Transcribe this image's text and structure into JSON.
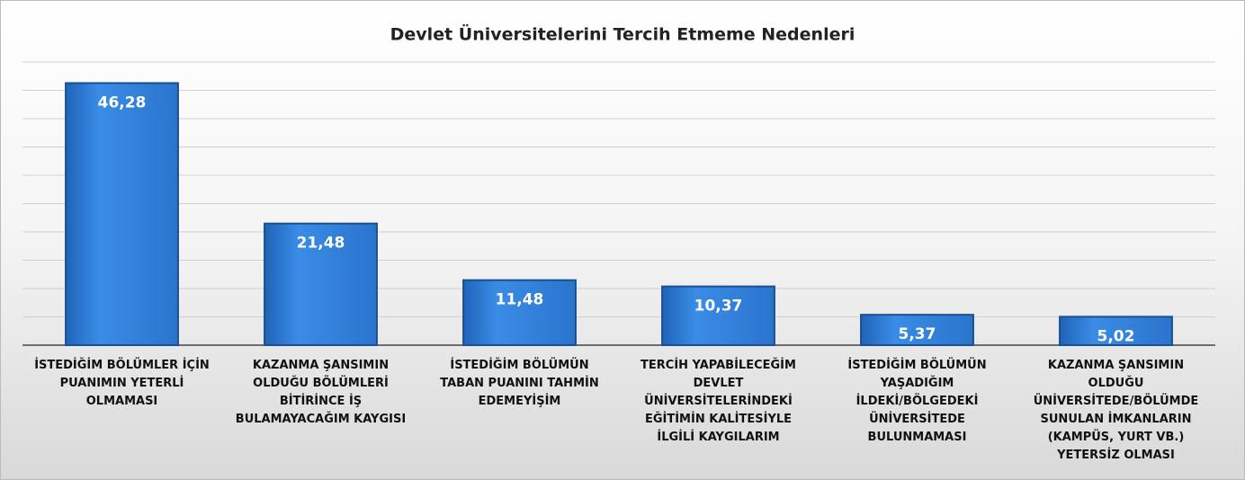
{
  "chart_data": {
    "type": "bar",
    "title": "Devlet Üniversitelerini Tercih Etmeme Nedenleri",
    "categories": [
      "İSTEDİĞİM BÖLÜMLER İÇİN PUANIMIN YETERLİ OLMAMASI",
      "KAZANMA ŞANSIMIN OLDUĞU BÖLÜMLERİ BİTİRİNCE İŞ BULAMAYACAĞIM KAYGISI",
      "İSTEDİĞİM BÖLÜMÜN TABAN PUANINI TAHMİN EDEMEYİŞİM",
      "TERCİH YAPABİLECEĞİM DEVLET ÜNİVERSİTELERİNDEKİ EĞİTİMİN KALİTESİYLE İLGİLİ KAYGILARIM",
      "İSTEDİĞİM BÖLÜMÜN YAŞADIĞIM İLDEKİ/BÖLGEDEKİ ÜNİVERSİTEDE BULUNMAMASI",
      "KAZANMA ŞANSIMIN OLDUĞU ÜNİVERSİTEDE/BÖLÜMDE SUNULAN İMKANLARIN (KAMPÜS, YURT VB.) YETERSİZ OLMASI"
    ],
    "values": [
      46.28,
      21.48,
      11.48,
      10.37,
      5.37,
      5.02
    ],
    "value_labels": [
      "46,28",
      "21,48",
      "11,48",
      "10,37",
      "5,37",
      "5,02"
    ],
    "color": "#2f7fd8",
    "ylim": [
      0,
      50
    ],
    "yticks": [
      0,
      5,
      10,
      15,
      20,
      25,
      30,
      35,
      40,
      45,
      50
    ],
    "grid": true
  }
}
